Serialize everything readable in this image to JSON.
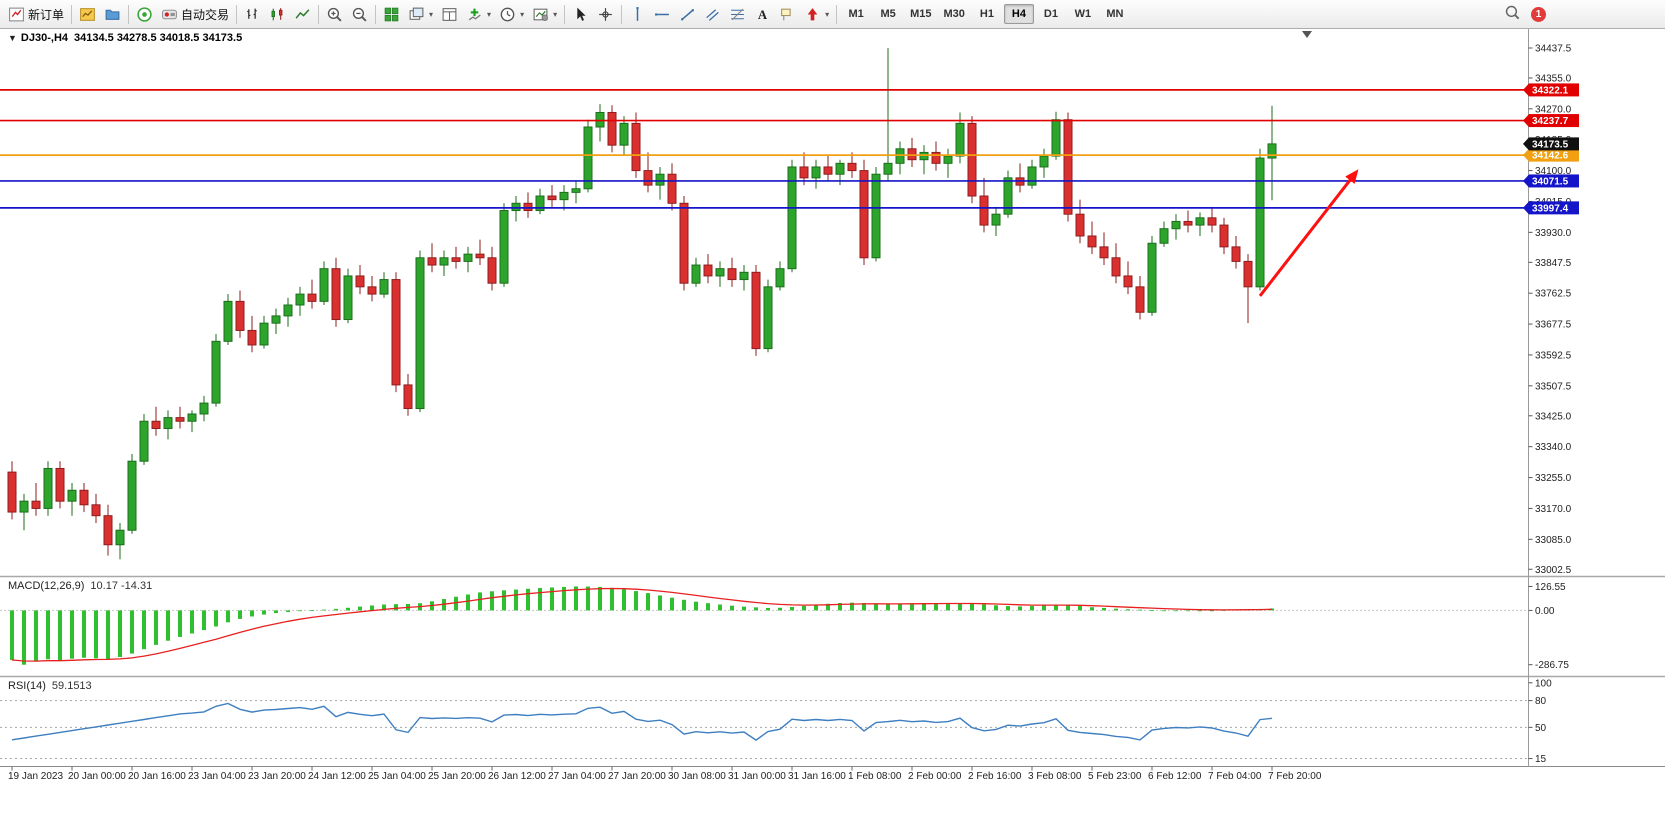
{
  "toolbar": {
    "caret_glyph": "▾",
    "buttons": [
      {
        "name": "new-order",
        "label": "新订单"
      },
      {
        "sep": true
      },
      {
        "name": "new-chart"
      },
      {
        "name": "profiles"
      },
      {
        "sep": true
      },
      {
        "name": "sound"
      },
      {
        "name": "autotrading",
        "label": "自动交易"
      },
      {
        "sep": true
      },
      {
        "name": "bar-chart"
      },
      {
        "name": "candlestick-chart"
      },
      {
        "name": "line-chart"
      },
      {
        "sep": true
      },
      {
        "name": "zoom-in"
      },
      {
        "name": "zoom-out"
      },
      {
        "sep": true
      },
      {
        "name": "tile-windows"
      },
      {
        "name": "arrange-windows",
        "caret": true
      },
      {
        "name": "data-window"
      },
      {
        "name": "indicators",
        "caret": true
      },
      {
        "name": "periods",
        "caret": true
      },
      {
        "name": "templates",
        "caret": true
      },
      {
        "sep": true
      },
      {
        "name": "cursor"
      },
      {
        "name": "crosshair"
      },
      {
        "sep": true
      },
      {
        "name": "vertical-line"
      },
      {
        "name": "horizontal-line"
      },
      {
        "name": "trendline"
      },
      {
        "name": "equidistant-channel"
      },
      {
        "name": "fibonacci"
      },
      {
        "name": "text"
      },
      {
        "name": "text-label"
      },
      {
        "name": "arrows",
        "caret": true
      },
      {
        "sep": true
      }
    ],
    "timeframes": [
      "M1",
      "M5",
      "M15",
      "M30",
      "H1",
      "H4",
      "D1",
      "W1",
      "MN"
    ],
    "active_timeframe": "H4",
    "notification_count": "1"
  },
  "chart": {
    "one_click_icon": "▼",
    "title_symbol": "DJ30-,H4",
    "title_ohlc": "34134.5 34278.5 34018.5 34173.5"
  },
  "chart_data": {
    "type": "candlestick",
    "symbol": "DJ30-",
    "timeframe": "H4",
    "current_ohlc": {
      "open": 34134.5,
      "high": 34278.5,
      "low": 34018.5,
      "close": 34173.5
    },
    "price_range": [
      32995,
      34465
    ],
    "y_ticks": [
      "34437.5",
      "34355.0",
      "34270.0",
      "34185.0",
      "34100.0",
      "34015.0",
      "33930.0",
      "33847.5",
      "33762.5",
      "33677.5",
      "33592.5",
      "33507.5",
      "33425.0",
      "33340.0",
      "33255.0",
      "33170.0",
      "33085.0",
      "33002.5"
    ],
    "x_labels": [
      "19 Jan 2023",
      "20 Jan 00:00",
      "20 Jan 16:00",
      "23 Jan 04:00",
      "23 Jan 20:00",
      "24 Jan 12:00",
      "25 Jan 04:00",
      "25 Jan 20:00",
      "26 Jan 12:00",
      "27 Jan 04:00",
      "27 Jan 20:00",
      "30 Jan 08:00",
      "31 Jan 00:00",
      "31 Jan 16:00",
      "1 Feb 08:00",
      "2 Feb 00:00",
      "2 Feb 16:00",
      "3 Feb 08:00",
      "5 Feb 23:00",
      "6 Feb 12:00",
      "7 Feb 04:00",
      "7 Feb 20:00"
    ],
    "x_label_every": 5,
    "colors": {
      "up": "#2DA52D",
      "up_border": "#1B6E1B",
      "down": "#DB3030",
      "down_border": "#8F1D1D"
    },
    "candles": [
      [
        33270,
        33300,
        33140,
        33160
      ],
      [
        33160,
        33210,
        33110,
        33190
      ],
      [
        33190,
        33240,
        33150,
        33170
      ],
      [
        33170,
        33300,
        33150,
        33280
      ],
      [
        33280,
        33300,
        33170,
        33190
      ],
      [
        33190,
        33240,
        33150,
        33220
      ],
      [
        33220,
        33240,
        33160,
        33180
      ],
      [
        33180,
        33210,
        33130,
        33150
      ],
      [
        33150,
        33180,
        33040,
        33070
      ],
      [
        33070,
        33130,
        33030,
        33110
      ],
      [
        33110,
        33320,
        33100,
        33300
      ],
      [
        33300,
        33430,
        33290,
        33410
      ],
      [
        33410,
        33450,
        33370,
        33390
      ],
      [
        33390,
        33440,
        33360,
        33420
      ],
      [
        33420,
        33450,
        33390,
        33410
      ],
      [
        33410,
        33440,
        33380,
        33430
      ],
      [
        33430,
        33480,
        33410,
        33460
      ],
      [
        33460,
        33650,
        33450,
        33630
      ],
      [
        33630,
        33760,
        33620,
        33740
      ],
      [
        33740,
        33770,
        33640,
        33660
      ],
      [
        33660,
        33700,
        33600,
        33620
      ],
      [
        33620,
        33700,
        33610,
        33680
      ],
      [
        33680,
        33720,
        33650,
        33700
      ],
      [
        33700,
        33750,
        33670,
        33730
      ],
      [
        33730,
        33780,
        33700,
        33760
      ],
      [
        33760,
        33800,
        33720,
        33740
      ],
      [
        33740,
        33850,
        33730,
        33830
      ],
      [
        33830,
        33860,
        33670,
        33690
      ],
      [
        33690,
        33830,
        33680,
        33810
      ],
      [
        33810,
        33840,
        33760,
        33780
      ],
      [
        33780,
        33810,
        33740,
        33760
      ],
      [
        33760,
        33820,
        33750,
        33800
      ],
      [
        33800,
        33820,
        33490,
        33510
      ],
      [
        33510,
        33540,
        33425,
        33445
      ],
      [
        33445,
        33880,
        33435,
        33860
      ],
      [
        33860,
        33900,
        33820,
        33840
      ],
      [
        33840,
        33880,
        33810,
        33860
      ],
      [
        33860,
        33890,
        33830,
        33850
      ],
      [
        33850,
        33890,
        33820,
        33870
      ],
      [
        33870,
        33910,
        33840,
        33860
      ],
      [
        33860,
        33890,
        33770,
        33790
      ],
      [
        33790,
        34010,
        33780,
        33990
      ],
      [
        33990,
        34030,
        33960,
        34010
      ],
      [
        34010,
        34040,
        33970,
        33990
      ],
      [
        33990,
        34050,
        33980,
        34030
      ],
      [
        34030,
        34060,
        34000,
        34020
      ],
      [
        34020,
        34060,
        33990,
        34040
      ],
      [
        34040,
        34070,
        34010,
        34050
      ],
      [
        34050,
        34240,
        34040,
        34220
      ],
      [
        34220,
        34283,
        34180,
        34260
      ],
      [
        34260,
        34280,
        34150,
        34170
      ],
      [
        34170,
        34250,
        34140,
        34230
      ],
      [
        34230,
        34260,
        34080,
        34100
      ],
      [
        34100,
        34150,
        34040,
        34060
      ],
      [
        34060,
        34110,
        34020,
        34090
      ],
      [
        34090,
        34120,
        33990,
        34010
      ],
      [
        34010,
        34030,
        33770,
        33790
      ],
      [
        33790,
        33860,
        33780,
        33840
      ],
      [
        33840,
        33870,
        33790,
        33810
      ],
      [
        33810,
        33850,
        33780,
        33830
      ],
      [
        33830,
        33860,
        33780,
        33800
      ],
      [
        33800,
        33840,
        33770,
        33820
      ],
      [
        33820,
        33840,
        33590,
        33610
      ],
      [
        33610,
        33800,
        33600,
        33780
      ],
      [
        33780,
        33850,
        33770,
        33830
      ],
      [
        33830,
        34130,
        33820,
        34110
      ],
      [
        34110,
        34150,
        34060,
        34080
      ],
      [
        34080,
        34130,
        34050,
        34110
      ],
      [
        34110,
        34140,
        34070,
        34090
      ],
      [
        34090,
        34130,
        34060,
        34120
      ],
      [
        34120,
        34150,
        34080,
        34100
      ],
      [
        34100,
        34130,
        33840,
        33860
      ],
      [
        33860,
        34110,
        33850,
        34090
      ],
      [
        34090,
        34437,
        34070,
        34120
      ],
      [
        34120,
        34180,
        34090,
        34160
      ],
      [
        34160,
        34190,
        34110,
        34130
      ],
      [
        34130,
        34170,
        34090,
        34150
      ],
      [
        34150,
        34180,
        34100,
        34120
      ],
      [
        34120,
        34160,
        34080,
        34140
      ],
      [
        34140,
        34260,
        34120,
        34230
      ],
      [
        34230,
        34250,
        34010,
        34030
      ],
      [
        34030,
        34080,
        33930,
        33950
      ],
      [
        33950,
        34000,
        33920,
        33980
      ],
      [
        33980,
        34100,
        33970,
        34080
      ],
      [
        34080,
        34120,
        34040,
        34060
      ],
      [
        34060,
        34130,
        34050,
        34110
      ],
      [
        34110,
        34160,
        34080,
        34140
      ],
      [
        34140,
        34262,
        34130,
        34240
      ],
      [
        34240,
        34260,
        33960,
        33980
      ],
      [
        33980,
        34020,
        33900,
        33920
      ],
      [
        33920,
        33960,
        33870,
        33890
      ],
      [
        33890,
        33930,
        33840,
        33860
      ],
      [
        33860,
        33900,
        33790,
        33810
      ],
      [
        33810,
        33850,
        33760,
        33780
      ],
      [
        33780,
        33810,
        33690,
        33710
      ],
      [
        33710,
        33920,
        33700,
        33900
      ],
      [
        33900,
        33960,
        33890,
        33940
      ],
      [
        33940,
        33980,
        33910,
        33960
      ],
      [
        33960,
        33990,
        33930,
        33950
      ],
      [
        33950,
        33985,
        33920,
        33970
      ],
      [
        33970,
        34000,
        33930,
        33950
      ],
      [
        33950,
        33970,
        33870,
        33890
      ],
      [
        33890,
        33920,
        33830,
        33850
      ],
      [
        33850,
        33870,
        33680,
        33780
      ],
      [
        33780,
        34160,
        33770,
        34134.5
      ],
      [
        34134.5,
        34278.5,
        34018.5,
        34173.5
      ]
    ],
    "hlines": [
      {
        "price": 34322.1,
        "label": "34322.1",
        "color": "#E00000"
      },
      {
        "price": 34237.7,
        "label": "34237.7",
        "color": "#E00000"
      },
      {
        "price": 34142.6,
        "label": "34142.6",
        "color": "#F0A010"
      },
      {
        "price": 34071.5,
        "label": "34071.5",
        "color": "#1414C8"
      },
      {
        "price": 33997.4,
        "label": "33997.4",
        "color": "#1414C8"
      }
    ],
    "current_price": {
      "value": 34173.5,
      "label": "34173.5",
      "color": "#101010"
    },
    "annotation_arrow": {
      "from_index": 104,
      "from_price": 33755,
      "to_index": 112,
      "to_price": 34095,
      "color": "#FF1010"
    },
    "indicators": {
      "macd": {
        "label": "MACD(12,26,9)",
        "values_text": "10.17 -14.31",
        "y_ticks": [
          "126.55",
          "0.00",
          "-286.75"
        ],
        "range": [
          -320,
          150
        ],
        "histogram_color": "#2FBF2F",
        "signal_color": "#E82020",
        "signal": "ema9_of_histogram",
        "histogram": [
          -262,
          -286.75,
          -270,
          -258,
          -265,
          -255,
          -250,
          -253,
          -258,
          -246,
          -228,
          -205,
          -182,
          -160,
          -140,
          -122,
          -104,
          -85,
          -63,
          -45,
          -32,
          -22,
          -14,
          -8,
          -3,
          1,
          4,
          8,
          14,
          20,
          26,
          31,
          33,
          34,
          38,
          48,
          60,
          72,
          84,
          95,
          101,
          106,
          110,
          114,
          118,
          121,
          124,
          126.55,
          126,
          124,
          119,
          112,
          102,
          91,
          79,
          67,
          56,
          46,
          38,
          31,
          25,
          20,
          16,
          13,
          14,
          18,
          24,
          30,
          35,
          39,
          41,
          39,
          35,
          33,
          35,
          37,
          38,
          38,
          37,
          38,
          36,
          32,
          27,
          23,
          21,
          23,
          26,
          29,
          27,
          23,
          17,
          13,
          9,
          6,
          4,
          2,
          0,
          -2,
          -3,
          -2,
          0,
          2,
          4,
          6,
          8,
          10.17
        ]
      },
      "rsi": {
        "label": "RSI(14)",
        "value_text": "59.1513",
        "period": 14,
        "levels": [
          80,
          50,
          15
        ],
        "y_ticks": [
          "100",
          "80",
          "50",
          "15"
        ],
        "range": [
          10,
          102
        ],
        "line_color": "#3E7FC1",
        "source": "computed_from_candles"
      }
    }
  }
}
